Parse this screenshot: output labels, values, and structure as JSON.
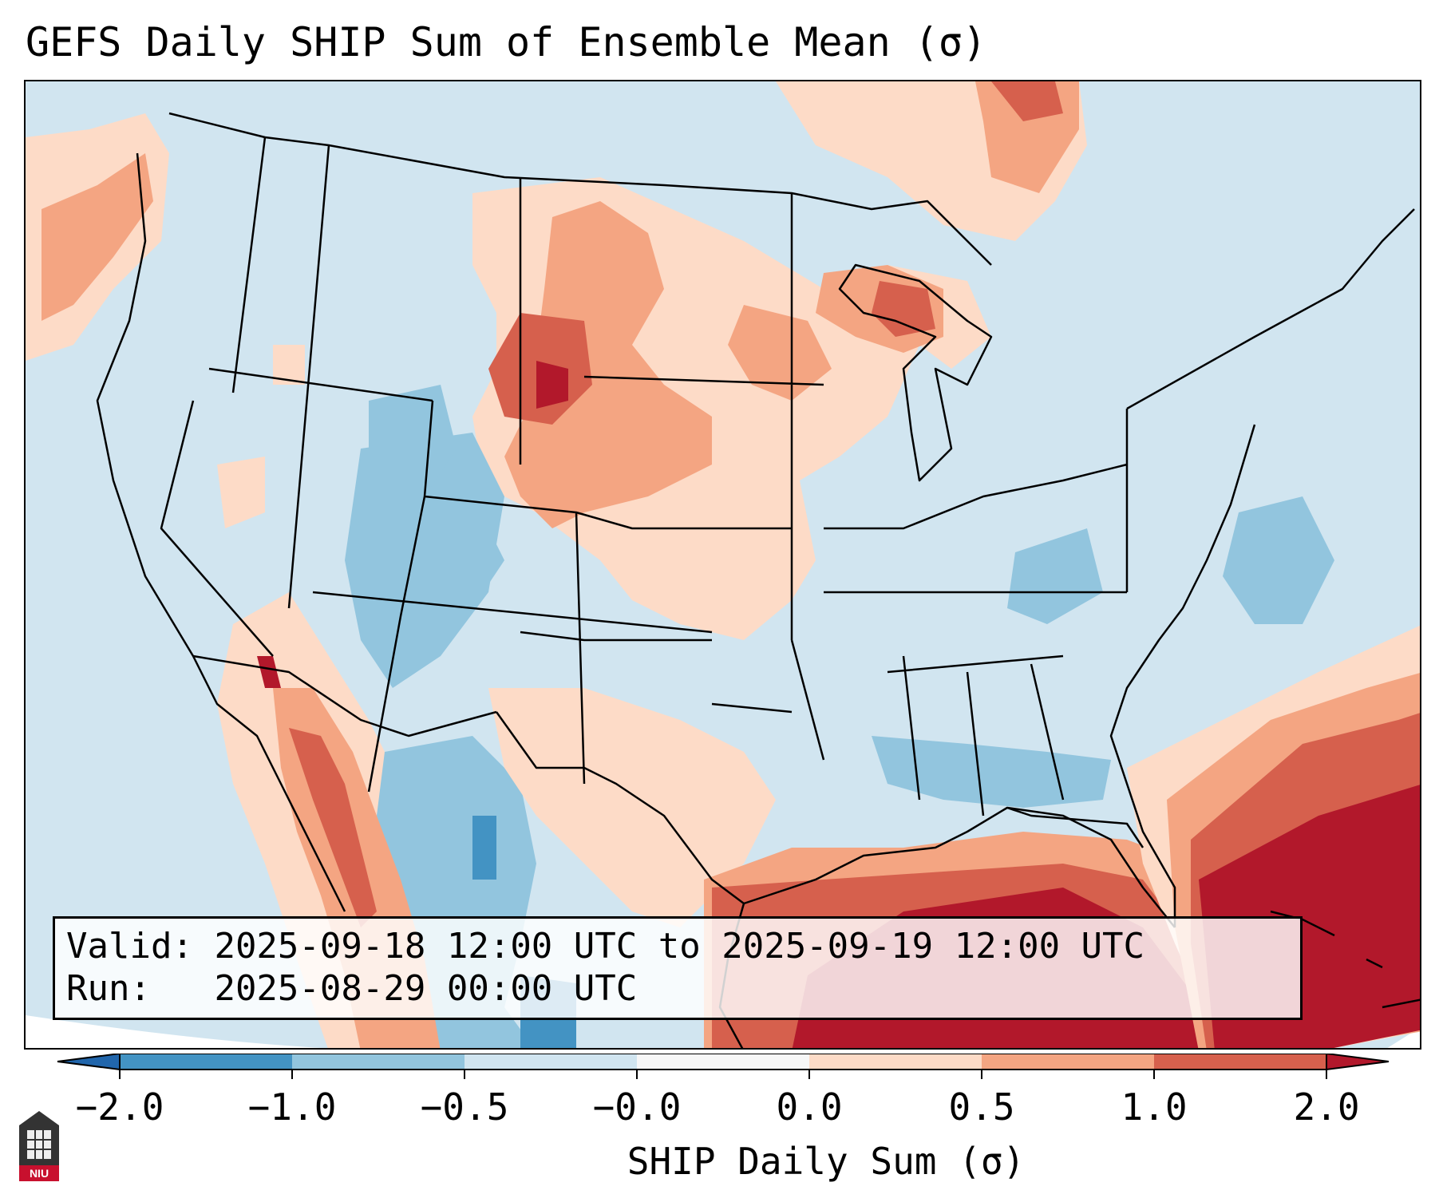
{
  "title": "GEFS Daily SHIP Sum of Ensemble Mean (σ)",
  "info": {
    "valid_label": "Valid:",
    "valid_value": "2025-09-18 12:00 UTC to 2025-09-19 12:00 UTC",
    "run_label": "Run:",
    "run_value": "2025-08-29 00:00 UTC"
  },
  "colorbar": {
    "title": "SHIP Daily Sum (σ)",
    "tick_labels": [
      "−2.0",
      "−1.0",
      "−0.5",
      "−0.0",
      "0.0",
      "0.5",
      "1.0",
      "2.0"
    ],
    "bin_colors": [
      "#4393c3",
      "#92c5de",
      "#d1e5f0",
      "#f7f7f7",
      "#fddbc7",
      "#f4a582",
      "#d6604d",
      "#b2182b"
    ],
    "extend_low_color": "#2166ac",
    "extend_high_color": "#b2182b"
  },
  "logo": {
    "text": "NIU"
  },
  "map": {
    "region": "Contiguous United States, northern Mexico, Gulf of Mexico and western Atlantic",
    "background_color": "#d1e5f0"
  }
}
